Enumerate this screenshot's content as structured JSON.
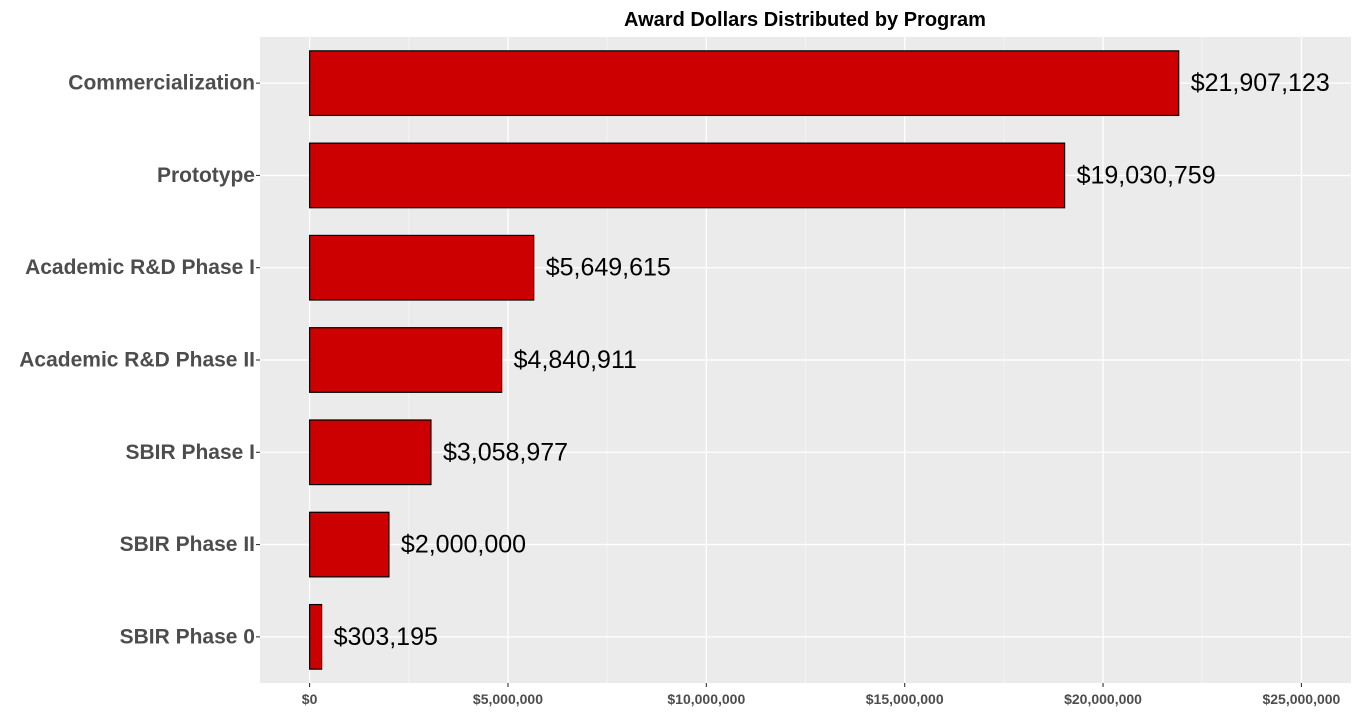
{
  "chart_data": {
    "type": "bar",
    "orientation": "horizontal",
    "title": "Award Dollars Distributed by Program",
    "xlabel": "",
    "ylabel": "",
    "categories": [
      "Commercialization",
      "Prototype",
      "Academic R&D Phase I",
      "Academic R&D Phase II",
      "SBIR Phase I",
      "SBIR Phase II",
      "SBIR Phase 0"
    ],
    "values": [
      21907123,
      19030759,
      5649615,
      4840911,
      3058977,
      2000000,
      303195
    ],
    "value_labels": [
      "$21,907,123",
      "$19,030,759",
      "$5,649,615",
      "$4,840,911",
      "$3,058,977",
      "$2,000,000",
      "$303,195"
    ],
    "xlim": [
      -1250000,
      26250000
    ],
    "x_ticks": [
      0,
      5000000,
      10000000,
      15000000,
      20000000,
      25000000
    ],
    "x_tick_labels": [
      "$0",
      "$5,000,000",
      "$10,000,000",
      "$15,000,000",
      "$20,000,000",
      "$25,000,000"
    ],
    "grid": true,
    "legend": "none",
    "colors": {
      "bar_fill": "#cc0000",
      "bar_stroke": "#000000",
      "panel_background": "#ebebeb",
      "grid_major": "#ffffff",
      "grid_minor": "#f5f5f5",
      "axis_text": "#4d4d4d",
      "title": "#000000"
    }
  }
}
